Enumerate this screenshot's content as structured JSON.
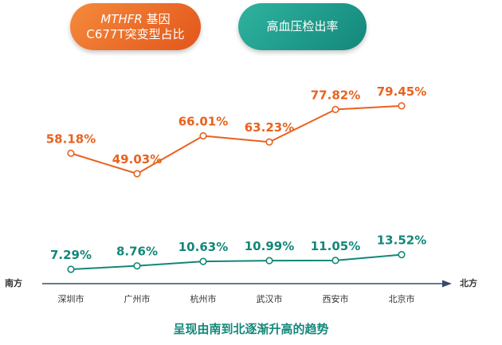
{
  "pills": {
    "orange_line1_italic": "MTHFR",
    "orange_line1_rest": " 基因",
    "orange_line2": "C677T突变型占比",
    "teal": "高血压检出率"
  },
  "axis": {
    "left_label": "南方",
    "right_label": "北方"
  },
  "footer": "呈现由南到北逐渐升高的趋势",
  "colors": {
    "orange": "#e8621f",
    "teal": "#13877a"
  },
  "chart_data": {
    "type": "line",
    "categories": [
      "深圳市",
      "广州市",
      "杭州市",
      "武汉市",
      "西安市",
      "北京市"
    ],
    "series": [
      {
        "name": "MTHFR 基因C677T突变型占比",
        "values": [
          58.18,
          49.03,
          66.01,
          63.23,
          77.82,
          79.45
        ],
        "labels": [
          "58.18%",
          "49.03%",
          "66.01%",
          "63.23%",
          "77.82%",
          "79.45%"
        ]
      },
      {
        "name": "高血压检出率",
        "values": [
          7.29,
          8.76,
          10.63,
          10.99,
          11.05,
          13.52
        ],
        "labels": [
          "7.29%",
          "8.76%",
          "10.63%",
          "10.99%",
          "11.05%",
          "13.52%"
        ]
      }
    ],
    "unit": "%"
  }
}
